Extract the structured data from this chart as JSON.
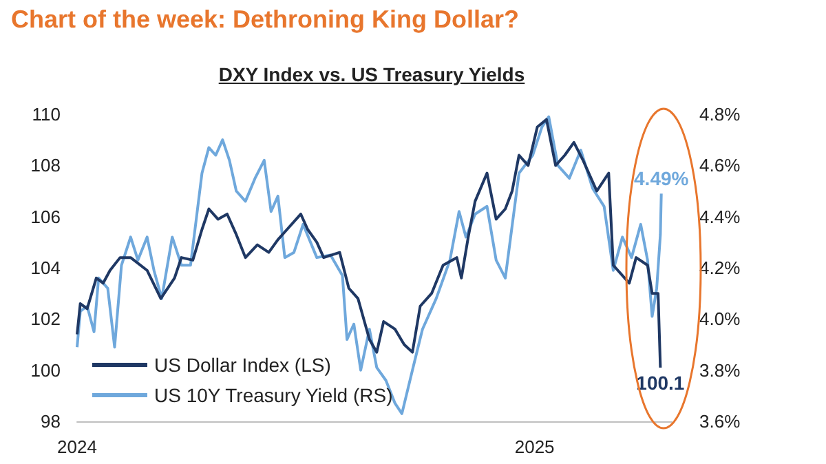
{
  "chart_data": {
    "type": "line",
    "title": "Chart of the week: Dethroning King Dollar?",
    "subtitle": "DXY Index vs. US Treasury Yields",
    "xlim": [
      2024,
      2025.3
    ],
    "xticks": [
      2024,
      2025
    ],
    "ylim": [
      98,
      110
    ],
    "yticks": [
      98,
      100,
      102,
      104,
      106,
      108,
      110
    ],
    "y2lim": [
      3.6,
      4.8
    ],
    "y2ticks": [
      {
        "value": 3.6,
        "label": "3.6%"
      },
      {
        "value": 3.8,
        "label": "3.8%"
      },
      {
        "value": 4.0,
        "label": "4.0%"
      },
      {
        "value": 4.2,
        "label": "4.2%"
      },
      {
        "value": 4.4,
        "label": "4.4%"
      },
      {
        "value": 4.6,
        "label": "4.6%"
      },
      {
        "value": 4.8,
        "label": "4.8%"
      }
    ],
    "grid": false,
    "legend": "bottom left",
    "marker": "none",
    "line_style": "solid",
    "series": [
      {
        "name": "US Dollar Index (LS)",
        "color": "#1f3864",
        "x": [
          2024.0,
          2024.007,
          2024.022,
          2024.042,
          2024.057,
          2024.072,
          2024.094,
          2024.117,
          2024.153,
          2024.183,
          2024.213,
          2024.228,
          2024.253,
          2024.273,
          2024.288,
          2024.308,
          2024.328,
          2024.348,
          2024.368,
          2024.394,
          2024.419,
          2024.439,
          2024.459,
          2024.489,
          2024.504,
          2024.524,
          2024.539,
          2024.574,
          2024.594,
          2024.614,
          2024.639,
          2024.655,
          2024.67,
          2024.695,
          2024.715,
          2024.733,
          2024.75,
          2024.775,
          2024.8,
          2024.83,
          2024.84,
          2024.855,
          2024.87,
          2024.896,
          2024.916,
          2024.936,
          2024.951,
          2024.966,
          2024.986,
          2025.006,
          2025.026,
          2025.046,
          2025.066,
          2025.086,
          2025.106,
          2025.136,
          2025.162,
          2025.172,
          2025.207,
          2025.222,
          2025.247,
          2025.257,
          2025.27,
          2025.275
        ],
        "values": [
          101.4,
          102.6,
          102.4,
          103.6,
          103.4,
          103.9,
          104.4,
          104.4,
          103.9,
          102.8,
          103.6,
          104.4,
          104.3,
          105.5,
          106.3,
          105.9,
          106.1,
          105.3,
          104.4,
          104.9,
          104.6,
          105.1,
          105.5,
          106.1,
          105.5,
          105.0,
          104.4,
          104.6,
          103.2,
          102.8,
          101.2,
          100.7,
          101.9,
          101.6,
          101.0,
          100.7,
          102.5,
          103.0,
          104.1,
          104.4,
          103.6,
          105.2,
          106.6,
          107.7,
          105.9,
          106.3,
          107.0,
          108.4,
          108.0,
          109.5,
          109.8,
          108.0,
          108.4,
          108.9,
          108.2,
          107.0,
          107.7,
          104.1,
          103.4,
          104.4,
          104.1,
          103.0,
          103.0,
          100.1
        ],
        "value_labels": [
          null,
          null,
          null,
          null,
          null,
          null,
          null,
          null,
          null,
          null,
          null,
          null,
          null,
          null,
          null,
          null,
          null,
          null,
          null,
          null,
          null,
          null,
          null,
          null,
          null,
          null,
          null,
          null,
          null,
          null,
          null,
          null,
          null,
          null,
          null,
          null,
          null,
          null,
          null,
          null,
          null,
          null,
          null,
          null,
          null,
          null,
          null,
          null,
          null,
          null,
          null,
          null,
          null,
          null,
          null,
          null,
          null,
          null,
          null,
          null,
          null,
          null,
          null,
          "100.1"
        ]
      },
      {
        "name": "US 10Y Treasury Yield (RS)",
        "color": "#6fa8dc",
        "axis": "y2",
        "x": [
          2024.0,
          2024.007,
          2024.022,
          2024.037,
          2024.047,
          2024.067,
          2024.082,
          2024.097,
          2024.117,
          2024.133,
          2024.153,
          2024.168,
          2024.185,
          2024.208,
          2024.228,
          2024.248,
          2024.273,
          2024.288,
          2024.303,
          2024.318,
          2024.333,
          2024.348,
          2024.368,
          2024.389,
          2024.409,
          2024.424,
          2024.439,
          2024.454,
          2024.474,
          2024.494,
          2024.524,
          2024.554,
          2024.58,
          2024.59,
          2024.605,
          2024.62,
          2024.639,
          2024.655,
          2024.675,
          2024.695,
          2024.71,
          2024.733,
          2024.755,
          2024.785,
          2024.815,
          2024.835,
          2024.85,
          2024.87,
          2024.896,
          2024.916,
          2024.936,
          2024.966,
          2024.996,
          2025.016,
          2025.031,
          2025.051,
          2025.076,
          2025.101,
          2025.127,
          2025.152,
          2025.172,
          2025.192,
          2025.212,
          2025.232,
          2025.247,
          2025.257,
          2025.267,
          2025.275,
          2025.277
        ],
        "values": [
          3.89,
          4.03,
          4.05,
          3.95,
          4.16,
          4.12,
          3.89,
          4.21,
          4.32,
          4.23,
          4.32,
          4.19,
          4.08,
          4.32,
          4.21,
          4.21,
          4.57,
          4.67,
          4.64,
          4.7,
          4.62,
          4.5,
          4.46,
          4.55,
          4.62,
          4.42,
          4.48,
          4.24,
          4.26,
          4.37,
          4.24,
          4.25,
          4.17,
          3.92,
          3.98,
          3.8,
          3.96,
          3.81,
          3.76,
          3.67,
          3.63,
          3.8,
          3.96,
          4.08,
          4.23,
          4.42,
          4.32,
          4.41,
          4.44,
          4.23,
          4.16,
          4.57,
          4.64,
          4.75,
          4.79,
          4.6,
          4.55,
          4.66,
          4.51,
          4.44,
          4.19,
          4.32,
          4.24,
          4.37,
          4.23,
          4.01,
          4.12,
          4.33,
          4.49
        ],
        "value_labels": [
          null,
          null,
          null,
          null,
          null,
          null,
          null,
          null,
          null,
          null,
          null,
          null,
          null,
          null,
          null,
          null,
          null,
          null,
          null,
          null,
          null,
          null,
          null,
          null,
          null,
          null,
          null,
          null,
          null,
          null,
          null,
          null,
          null,
          null,
          null,
          null,
          null,
          null,
          null,
          null,
          null,
          null,
          null,
          null,
          null,
          null,
          null,
          null,
          null,
          null,
          null,
          null,
          null,
          null,
          null,
          null,
          null,
          null,
          null,
          null,
          null,
          null,
          null,
          null,
          null,
          null,
          null,
          null,
          "4.49%"
        ]
      }
    ]
  }
}
